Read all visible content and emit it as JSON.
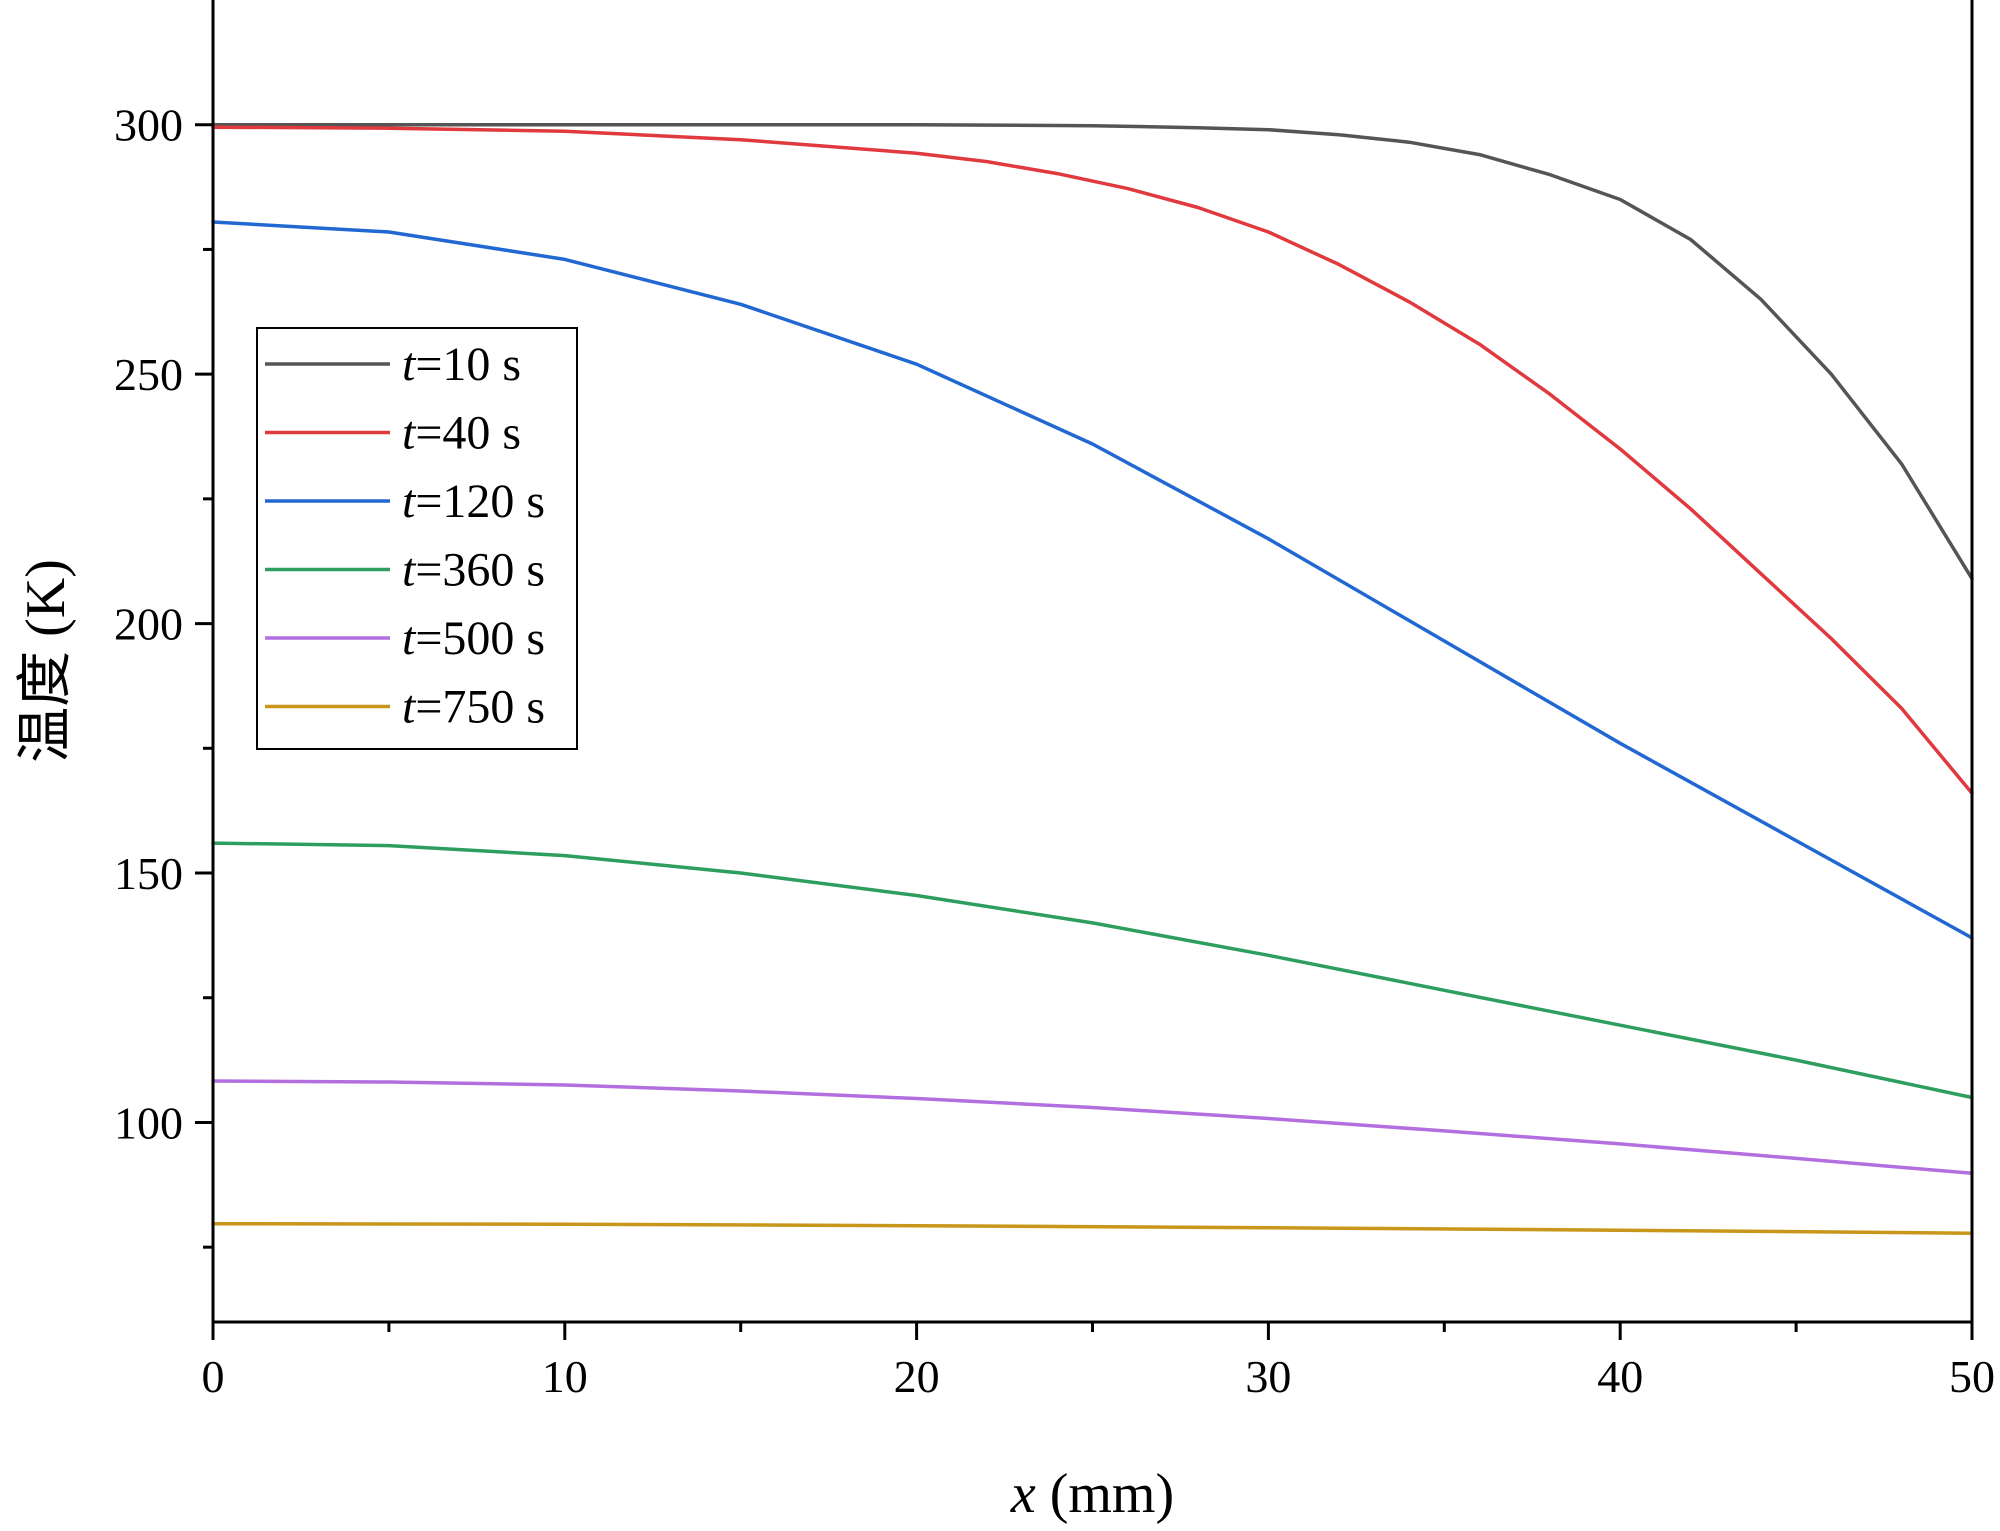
{
  "chart_data": {
    "type": "line",
    "xlabel_var": "x",
    "xlabel_unit": " (mm)",
    "ylabel": "温度 (K)",
    "xlim": [
      0,
      50
    ],
    "ylim": [
      60,
      325
    ],
    "xticks": [
      0,
      10,
      20,
      30,
      40,
      50
    ],
    "xtick_labels": [
      "0",
      "10",
      "20",
      "30",
      "40",
      "50"
    ],
    "yticks": [
      100,
      150,
      200,
      250,
      300
    ],
    "ytick_labels": [
      "100",
      "150",
      "200",
      "250",
      "300"
    ],
    "legend_position": "left",
    "series": [
      {
        "name": "t=10 s",
        "legend_var": "t",
        "legend_rest": "=10 s",
        "color": "#555555",
        "x": [
          0,
          5,
          10,
          15,
          20,
          25,
          28,
          30,
          32,
          34,
          36,
          38,
          40,
          42,
          44,
          46,
          48,
          50
        ],
        "y": [
          300,
          300,
          300,
          300,
          300,
          299.8,
          299.4,
          299,
          298,
          296.5,
          294,
          290,
          285,
          277,
          265,
          250,
          232,
          209
        ]
      },
      {
        "name": "t=40 s",
        "legend_var": "t",
        "legend_rest": "=40 s",
        "color": "#e0393e",
        "x": [
          0,
          5,
          10,
          15,
          20,
          22,
          24,
          26,
          28,
          30,
          32,
          34,
          36,
          38,
          40,
          42,
          44,
          46,
          48,
          50
        ],
        "y": [
          299.5,
          299.3,
          298.7,
          297,
          294.3,
          292.6,
          290.2,
          287.2,
          283.4,
          278.5,
          272,
          264.5,
          256,
          246,
          235,
          223,
          210,
          197,
          183,
          166
        ]
      },
      {
        "name": "t=120 s",
        "legend_var": "t",
        "legend_rest": "=120 s",
        "color": "#2268d2",
        "x": [
          0,
          5,
          10,
          15,
          20,
          25,
          30,
          35,
          40,
          45,
          50
        ],
        "y": [
          280.5,
          278.5,
          273,
          264,
          252,
          236,
          217,
          196.5,
          176,
          156.5,
          137
        ]
      },
      {
        "name": "t=360 s",
        "legend_var": "t",
        "legend_rest": "=360 s",
        "color": "#2e9e5f",
        "x": [
          0,
          5,
          10,
          15,
          20,
          25,
          30,
          35,
          40,
          45,
          50
        ],
        "y": [
          156,
          155.5,
          153.5,
          150,
          145.5,
          140,
          133.5,
          126.5,
          119.5,
          112.5,
          105
        ]
      },
      {
        "name": "t=500 s",
        "legend_var": "t",
        "legend_rest": "=500 s",
        "color": "#b36fe0",
        "x": [
          0,
          5,
          10,
          15,
          20,
          25,
          30,
          35,
          40,
          45,
          50
        ],
        "y": [
          108.3,
          108.1,
          107.5,
          106.3,
          104.8,
          103,
          100.8,
          98.3,
          95.7,
          92.8,
          89.8
        ]
      },
      {
        "name": "t=750 s",
        "legend_var": "t",
        "legend_rest": "=750 s",
        "color": "#c8961a",
        "x": [
          0,
          10,
          20,
          30,
          40,
          50
        ],
        "y": [
          79.7,
          79.6,
          79.3,
          78.9,
          78.4,
          77.8
        ]
      }
    ]
  }
}
